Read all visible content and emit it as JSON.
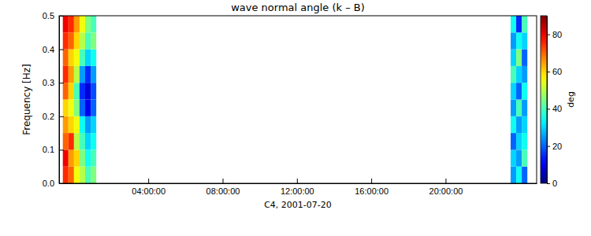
{
  "chart_data": {
    "type": "heatmap",
    "title": "wave normal angle (k – B)",
    "xlabel": "C4, 2001-07-20",
    "ylabel": "Frequency [Hz]",
    "xlim": [
      -0.8,
      24.9
    ],
    "xticks": [
      {
        "value": 4,
        "label": "04:00:00"
      },
      {
        "value": 8,
        "label": "08:00:00"
      },
      {
        "value": 12,
        "label": "12:00:00"
      },
      {
        "value": 16,
        "label": "16:00:00"
      },
      {
        "value": 20,
        "label": "20:00:00"
      }
    ],
    "ylim": [
      0,
      0.5
    ],
    "yticks": [
      {
        "value": 0,
        "label": "0.0"
      },
      {
        "value": 0.1,
        "label": "0.1"
      },
      {
        "value": 0.2,
        "label": "0.2"
      },
      {
        "value": 0.3,
        "label": "0.3"
      },
      {
        "value": 0.4,
        "label": "0.4"
      },
      {
        "value": 0.5,
        "label": "0.5"
      }
    ],
    "cells": {
      "x_edges": [
        -0.6,
        -0.3,
        0,
        0.3,
        0.6,
        0.9,
        1.2,
        23.5,
        23.8,
        24.1,
        24.4
      ],
      "y_edges": [
        0,
        0.05,
        0.1,
        0.15,
        0.2,
        0.25,
        0.3,
        0.35,
        0.4,
        0.45,
        0.5
      ],
      "values": [
        [
          75,
          70,
          55,
          50,
          40,
          45,
          null,
          25,
          35,
          20
        ],
        [
          80,
          65,
          60,
          45,
          35,
          40,
          null,
          30,
          25,
          40
        ],
        [
          70,
          75,
          50,
          40,
          30,
          35,
          null,
          20,
          30,
          35
        ],
        [
          65,
          60,
          55,
          35,
          25,
          30,
          null,
          35,
          25,
          30
        ],
        [
          60,
          55,
          45,
          20,
          10,
          20,
          null,
          25,
          40,
          25
        ],
        [
          70,
          60,
          40,
          15,
          8,
          18,
          null,
          30,
          20,
          35
        ],
        [
          75,
          65,
          50,
          25,
          15,
          25,
          null,
          40,
          30,
          25
        ],
        [
          70,
          60,
          55,
          40,
          30,
          35,
          null,
          30,
          45,
          20
        ],
        [
          75,
          70,
          60,
          50,
          40,
          45,
          null,
          25,
          35,
          30
        ],
        [
          80,
          75,
          65,
          55,
          45,
          40,
          null,
          35,
          15,
          40
        ]
      ]
    },
    "colorbar": {
      "label": "deg",
      "range": [
        0,
        90
      ],
      "ticks": [
        0,
        20,
        40,
        60,
        80
      ]
    }
  }
}
